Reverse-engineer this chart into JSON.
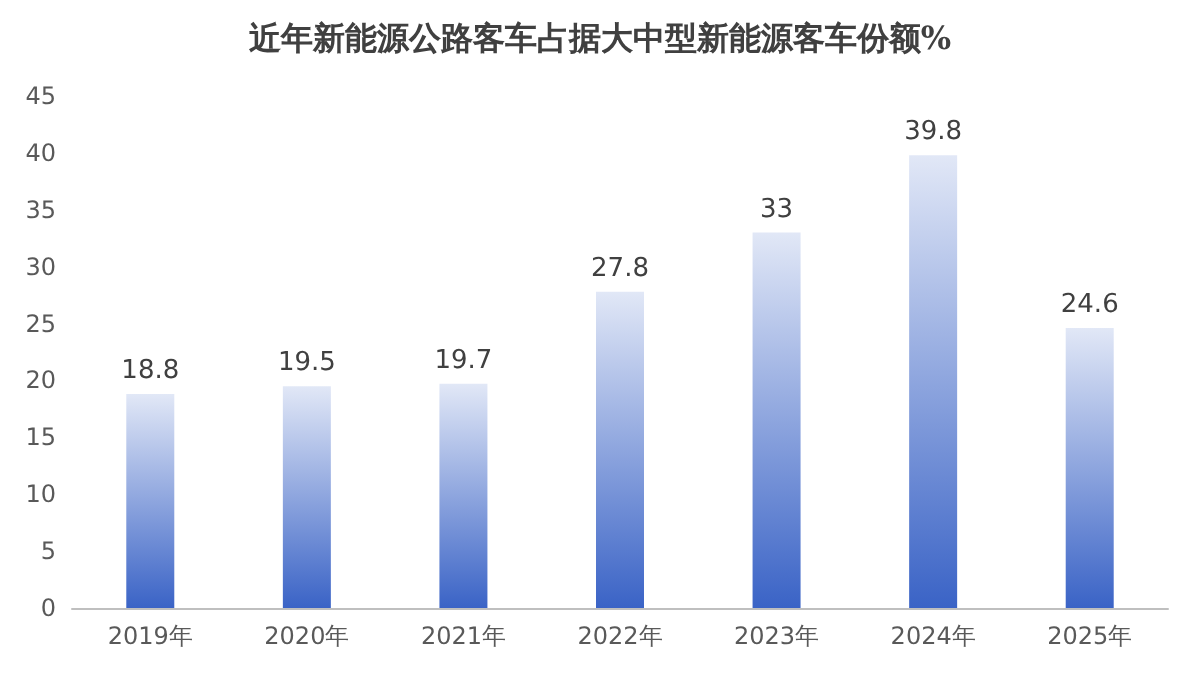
{
  "chart_data": {
    "type": "bar",
    "title": "近年新能源公路客车占据大中型新能源客车份额%",
    "categories": [
      "2019年",
      "2020年",
      "2021年",
      "2022年",
      "2023年",
      "2024年",
      "2025年"
    ],
    "values": [
      18.8,
      19.5,
      19.7,
      27.8,
      33,
      39.8,
      24.6
    ],
    "color": "#3a63c6",
    "ylim": [
      0,
      45
    ],
    "yticks": [
      0,
      5,
      10,
      15,
      20,
      25,
      30,
      35,
      40,
      45
    ],
    "data_labels": true,
    "grid": false
  }
}
